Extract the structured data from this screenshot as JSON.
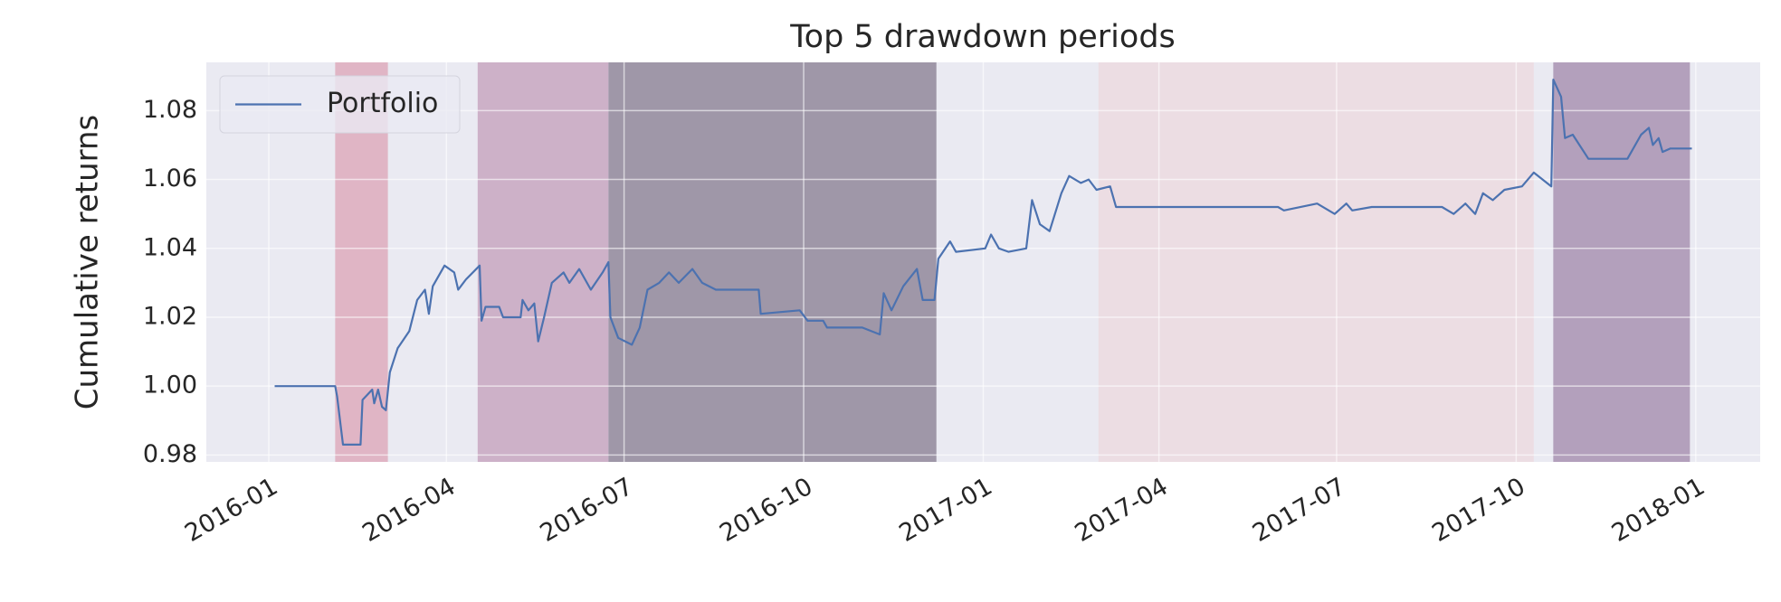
{
  "chart_data": {
    "type": "line",
    "title": "Top 5 drawdown periods",
    "y_label": "Cumulative returns",
    "xlim": [
      "2015-11-30",
      "2018-02-03"
    ],
    "ylim": [
      0.978,
      1.094
    ],
    "xticks": [
      {
        "value": "2016-01-01",
        "label": "2016-01"
      },
      {
        "value": "2016-04-01",
        "label": "2016-04"
      },
      {
        "value": "2016-07-01",
        "label": "2016-07"
      },
      {
        "value": "2016-10-01",
        "label": "2016-10"
      },
      {
        "value": "2017-01-01",
        "label": "2017-01"
      },
      {
        "value": "2017-04-01",
        "label": "2017-04"
      },
      {
        "value": "2017-07-01",
        "label": "2017-07"
      },
      {
        "value": "2017-10-01",
        "label": "2017-10"
      },
      {
        "value": "2018-01-01",
        "label": "2018-01"
      }
    ],
    "yticks": [
      {
        "value": 0.98,
        "label": "0.98"
      },
      {
        "value": 1.0,
        "label": "1.00"
      },
      {
        "value": 1.02,
        "label": "1.02"
      },
      {
        "value": 1.04,
        "label": "1.04"
      },
      {
        "value": 1.06,
        "label": "1.06"
      },
      {
        "value": 1.08,
        "label": "1.08"
      }
    ],
    "grid": true,
    "legend": "upper left",
    "spans": [
      {
        "start": "2016-02-04",
        "end": "2016-03-02",
        "color": "#e0b5c5"
      },
      {
        "start": "2016-04-17",
        "end": "2016-06-23",
        "color": "#cdb1c8"
      },
      {
        "start": "2016-06-23",
        "end": "2016-12-08",
        "color": "#9f97a8"
      },
      {
        "start": "2017-03-01",
        "end": "2017-10-10",
        "color": "#ecdde3"
      },
      {
        "start": "2017-10-20",
        "end": "2017-12-29",
        "color": "#b3a0bc"
      }
    ],
    "x": [
      "2016-01-04",
      "2016-02-04",
      "2016-02-05",
      "2016-02-08",
      "2016-02-17",
      "2016-02-18",
      "2016-02-23",
      "2016-02-24",
      "2016-02-26",
      "2016-02-28",
      "2016-03-01",
      "2016-03-03",
      "2016-03-07",
      "2016-03-13",
      "2016-03-17",
      "2016-03-21",
      "2016-03-23",
      "2016-03-25",
      "2016-03-31",
      "2016-04-05",
      "2016-04-07",
      "2016-04-11",
      "2016-04-18",
      "2016-04-19",
      "2016-04-21",
      "2016-04-28",
      "2016-04-30",
      "2016-05-09",
      "2016-05-10",
      "2016-05-13",
      "2016-05-16",
      "2016-05-18",
      "2016-05-21",
      "2016-05-25",
      "2016-05-31",
      "2016-06-03",
      "2016-06-08",
      "2016-06-14",
      "2016-06-20",
      "2016-06-23",
      "2016-06-24",
      "2016-06-28",
      "2016-07-05",
      "2016-07-09",
      "2016-07-13",
      "2016-07-19",
      "2016-07-24",
      "2016-07-29",
      "2016-08-05",
      "2016-08-10",
      "2016-08-17",
      "2016-09-08",
      "2016-09-09",
      "2016-09-29",
      "2016-10-03",
      "2016-10-11",
      "2016-10-13",
      "2016-10-31",
      "2016-11-09",
      "2016-11-11",
      "2016-11-15",
      "2016-11-21",
      "2016-11-28",
      "2016-12-01",
      "2016-12-07",
      "2016-12-09",
      "2016-12-15",
      "2016-12-18",
      "2017-01-02",
      "2017-01-05",
      "2017-01-09",
      "2017-01-14",
      "2017-01-23",
      "2017-01-26",
      "2017-01-30",
      "2017-02-04",
      "2017-02-10",
      "2017-02-14",
      "2017-02-20",
      "2017-02-24",
      "2017-02-28",
      "2017-03-07",
      "2017-03-10",
      "2017-06-01",
      "2017-06-04",
      "2017-06-21",
      "2017-06-30",
      "2017-07-06",
      "2017-07-09",
      "2017-07-19",
      "2017-08-24",
      "2017-08-30",
      "2017-09-05",
      "2017-09-10",
      "2017-09-14",
      "2017-09-19",
      "2017-09-25",
      "2017-10-04",
      "2017-10-10",
      "2017-10-19",
      "2017-10-20",
      "2017-10-24",
      "2017-10-26",
      "2017-10-30",
      "2017-11-07",
      "2017-11-27",
      "2017-12-04",
      "2017-12-08",
      "2017-12-10",
      "2017-12-13",
      "2017-12-15",
      "2017-12-19",
      "2017-12-30"
    ],
    "series": [
      {
        "name": "Portfolio",
        "color": "#4c72b0",
        "values": [
          1.0,
          1.0,
          0.997,
          0.983,
          0.983,
          0.996,
          0.999,
          0.995,
          0.999,
          0.994,
          0.993,
          1.004,
          1.011,
          1.016,
          1.025,
          1.028,
          1.021,
          1.029,
          1.035,
          1.033,
          1.028,
          1.031,
          1.035,
          1.019,
          1.023,
          1.023,
          1.02,
          1.02,
          1.025,
          1.022,
          1.024,
          1.013,
          1.02,
          1.03,
          1.033,
          1.03,
          1.034,
          1.028,
          1.033,
          1.036,
          1.02,
          1.014,
          1.012,
          1.017,
          1.028,
          1.03,
          1.033,
          1.03,
          1.034,
          1.03,
          1.028,
          1.028,
          1.021,
          1.022,
          1.019,
          1.019,
          1.017,
          1.017,
          1.015,
          1.027,
          1.022,
          1.029,
          1.034,
          1.025,
          1.025,
          1.037,
          1.042,
          1.039,
          1.04,
          1.044,
          1.04,
          1.039,
          1.04,
          1.054,
          1.047,
          1.045,
          1.056,
          1.061,
          1.059,
          1.06,
          1.057,
          1.058,
          1.052,
          1.052,
          1.051,
          1.053,
          1.05,
          1.053,
          1.051,
          1.052,
          1.052,
          1.05,
          1.053,
          1.05,
          1.056,
          1.054,
          1.057,
          1.058,
          1.062,
          1.058,
          1.089,
          1.084,
          1.072,
          1.073,
          1.066,
          1.066,
          1.073,
          1.075,
          1.07,
          1.072,
          1.068,
          1.069,
          1.069
        ]
      }
    ]
  }
}
